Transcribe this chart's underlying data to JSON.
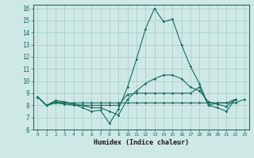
{
  "xlabel": "Humidex (Indice chaleur)",
  "bg_color": "#cee9e5",
  "grid_color": "#aacfcb",
  "line_color": "#1a6b64",
  "xlim": [
    -0.5,
    23.5
  ],
  "ylim": [
    6,
    16.3
  ],
  "xticks": [
    0,
    1,
    2,
    3,
    4,
    5,
    6,
    7,
    8,
    9,
    10,
    11,
    12,
    13,
    14,
    15,
    16,
    17,
    18,
    19,
    20,
    21,
    22,
    23
  ],
  "yticks": [
    6,
    7,
    8,
    9,
    10,
    11,
    12,
    13,
    14,
    15,
    16
  ],
  "series": [
    [
      8.7,
      8.0,
      8.3,
      8.2,
      8.1,
      7.8,
      7.5,
      7.6,
      6.5,
      7.7,
      9.5,
      11.8,
      14.3,
      16.0,
      14.9,
      15.1,
      13.0,
      11.2,
      9.8,
      8.0,
      7.8,
      7.5,
      8.5,
      null
    ],
    [
      8.7,
      8.0,
      8.2,
      8.2,
      8.2,
      8.2,
      8.2,
      8.2,
      8.2,
      8.2,
      8.2,
      8.2,
      8.2,
      8.2,
      8.2,
      8.2,
      8.2,
      8.2,
      8.2,
      8.2,
      8.2,
      8.2,
      8.2,
      8.5
    ],
    [
      8.7,
      8.0,
      8.2,
      8.1,
      8.0,
      8.0,
      8.0,
      8.0,
      8.0,
      8.0,
      8.9,
      9.0,
      9.0,
      9.0,
      9.0,
      9.0,
      9.0,
      9.0,
      9.5,
      8.0,
      8.2,
      8.2,
      8.5,
      null
    ],
    [
      8.7,
      8.0,
      8.4,
      8.3,
      8.1,
      8.0,
      7.8,
      7.8,
      7.5,
      7.2,
      8.5,
      9.2,
      9.8,
      10.2,
      10.5,
      10.5,
      10.2,
      9.5,
      9.2,
      8.3,
      8.1,
      7.9,
      8.5,
      null
    ]
  ]
}
